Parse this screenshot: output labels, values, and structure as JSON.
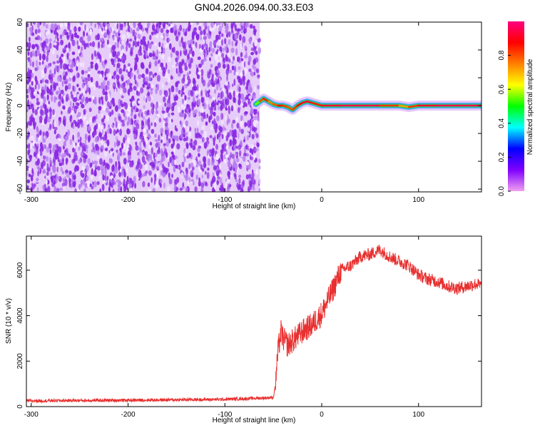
{
  "title": "GN04.2026.094.00.33.E03",
  "chart_data": [
    {
      "type": "heatmap",
      "xlabel": "Height of straight line (km)",
      "ylabel": "Frequency (Hz)",
      "xlim": [
        -305,
        165
      ],
      "ylim": [
        -62,
        60
      ],
      "xticks": [
        -300,
        -200,
        -100,
        0,
        100
      ],
      "yticks": [
        -60,
        -40,
        -20,
        0,
        20,
        40,
        60
      ],
      "colorbar": {
        "label": "Normalized spectral amplitude",
        "range": [
          0.0,
          1.0
        ],
        "ticks": [
          0.0,
          0.2,
          0.4,
          0.6,
          0.8
        ],
        "colormap": [
          "#f0a0f0",
          "#8000ff",
          "#0000ff",
          "#00ffff",
          "#00ff00",
          "#ffff00",
          "#ff8000",
          "#ff0000",
          "#ff0080"
        ]
      },
      "noise_region_x": [
        -305,
        -64
      ],
      "noise_amplitude_approx": 0.1,
      "signal_trace": {
        "x": [
          -68,
          -64,
          -60,
          -55,
          -50,
          -45,
          -40,
          -35,
          -30,
          -25,
          -20,
          -15,
          -10,
          -5,
          0,
          20,
          40,
          60,
          80,
          90,
          100,
          120,
          140,
          165
        ],
        "freq": [
          1,
          3,
          5,
          3,
          1,
          0,
          0,
          -1,
          -3,
          0,
          2,
          3,
          2,
          1,
          0,
          0,
          0,
          0,
          0,
          -1,
          0,
          0,
          0,
          0
        ],
        "amplitude": [
          0.4,
          0.7,
          0.9,
          0.8,
          0.7,
          0.9,
          0.85,
          0.8,
          0.8,
          0.85,
          0.9,
          0.95,
          0.9,
          0.8,
          0.9,
          0.95,
          0.95,
          0.95,
          0.7,
          0.75,
          0.9,
          0.95,
          0.95,
          0.95
        ]
      }
    },
    {
      "type": "line",
      "xlabel": "Height of straight line (km)",
      "ylabel": "SNR (10 * v/v)",
      "xlim": [
        -305,
        165
      ],
      "ylim": [
        0,
        7500
      ],
      "xticks": [
        -300,
        -200,
        -100,
        0,
        100
      ],
      "yticks": [
        0,
        2000,
        4000,
        6000
      ],
      "series": [
        {
          "color": "#e83030",
          "x": [
            -305,
            -280,
            -250,
            -200,
            -150,
            -100,
            -80,
            -60,
            -50,
            -48,
            -45,
            -42,
            -40,
            -35,
            -30,
            -20,
            -10,
            0,
            10,
            20,
            30,
            40,
            50,
            60,
            70,
            80,
            90,
            100,
            110,
            120,
            130,
            140,
            150,
            160,
            165
          ],
          "values": [
            250,
            260,
            270,
            280,
            300,
            320,
            350,
            380,
            400,
            900,
            2500,
            3300,
            3000,
            2700,
            2900,
            3300,
            3600,
            4100,
            5000,
            6000,
            6200,
            6600,
            6700,
            6900,
            6600,
            6400,
            6200,
            5800,
            5600,
            5500,
            5300,
            5200,
            5300,
            5400,
            5300
          ]
        }
      ]
    }
  ]
}
